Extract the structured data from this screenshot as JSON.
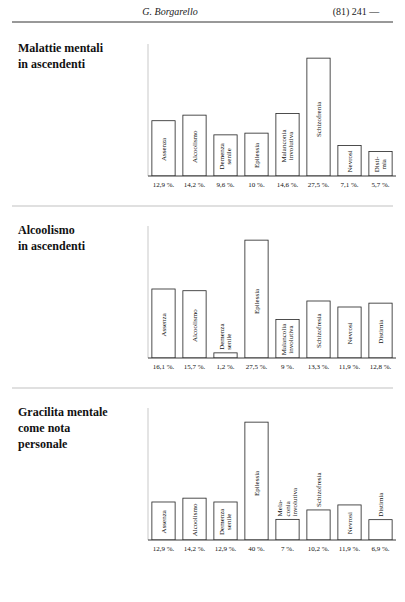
{
  "chart_data": [
    {
      "type": "bar",
      "title": "Malattie mentali\nin ascendenti",
      "annotations": [
        "G. Borgarello",
        "(81) 241 —"
      ],
      "categories": [
        "Assenza",
        "Alcoolismo",
        "Demenza\nsenile",
        "Epilessia",
        "Malanconia\ninvolutiva",
        "Schizofrenia",
        "Nevrosi",
        "Disti-\nmia"
      ],
      "values": [
        12.9,
        14.2,
        9.6,
        10.0,
        14.6,
        27.5,
        7.1,
        5.7
      ],
      "value_labels": [
        "12,9 %.",
        "14,2 %.",
        "9,6 %.",
        "10 %.",
        "14,6 %.",
        "27,5 %.",
        "7,1 %.",
        "5,7 %."
      ],
      "data_labels": true,
      "ylim": [
        0,
        30.8
      ],
      "tick_labels": "x",
      "grid": false,
      "color": "white"
    },
    {
      "type": "bar",
      "title": "Alcoolismo\nin ascendenti",
      "categories": [
        "Assenza",
        "Alcoolismo",
        "Demenza\nsenile",
        "Epilessia",
        "Malancolia\ninvolutiva",
        "Schizofresia",
        "Nevrosi",
        "Distimia"
      ],
      "values": [
        16.1,
        15.7,
        1.2,
        27.5,
        9.0,
        13.3,
        11.9,
        12.8
      ],
      "value_labels": [
        "16,1 %.",
        "15,7 %.",
        "1,2 %.",
        "27,5 %.",
        "9 %.",
        "13,3 %.",
        "11,9 %.",
        "12,8 %."
      ],
      "data_labels": true,
      "ylim": [
        0,
        30.8
      ],
      "tick_labels": "x",
      "grid": false,
      "color": "white"
    },
    {
      "type": "bar",
      "title": "Gracilita mentale\ncome nota\npersonale",
      "categories": [
        "Assenza",
        "Alcoolismo",
        "Demenza\nsenile",
        "Epilessia",
        "Mela-\nconia\ninvolutiva",
        "Schizofresia",
        "Nevrosi",
        "Distimia"
      ],
      "values": [
        12.9,
        14.2,
        12.9,
        40.0,
        7.0,
        10.2,
        11.9,
        6.9
      ],
      "value_labels": [
        "12,9 %.",
        "14,2 %.",
        "12,9 %.",
        "40 %.",
        "7 %.",
        "10,2 %.",
        "11,9 %.",
        "6,9 %."
      ],
      "data_labels": true,
      "ylim": [
        0,
        44.8
      ],
      "tick_labels": "x",
      "grid": false,
      "color": "white"
    }
  ]
}
